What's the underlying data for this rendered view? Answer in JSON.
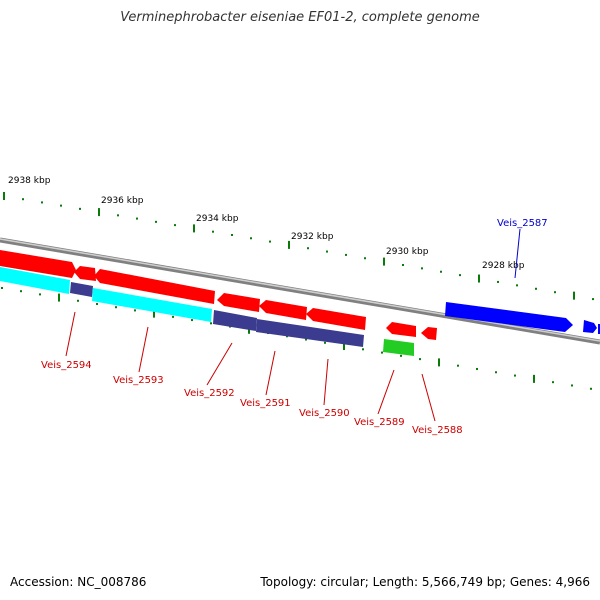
{
  "title": "Verminephrobacter eiseniae EF01-2, complete genome",
  "footer": {
    "accession": "Accession: NC_008786",
    "summary": "Topology: circular; Length: 5,566,749 bp; Genes: 4,966"
  },
  "kbp_labels": [
    "2938 kbp",
    "2936 kbp",
    "2934 kbp",
    "2932 kbp",
    "2930 kbp",
    "2928 kbp"
  ],
  "colors": {
    "red": "#ff0000",
    "cyan": "#00ffff",
    "navy": "#3b3b8f",
    "blue": "#0000ff",
    "green": "#22cc22",
    "tick": "#0a7a0a",
    "backbone": "#808080"
  },
  "genes": [
    {
      "label": "Veis_2594",
      "color": "#cc0000"
    },
    {
      "label": "Veis_2593",
      "color": "#cc0000"
    },
    {
      "label": "Veis_2592",
      "color": "#cc0000"
    },
    {
      "label": "Veis_2591",
      "color": "#cc0000"
    },
    {
      "label": "Veis_2590",
      "color": "#cc0000"
    },
    {
      "label": "Veis_2589",
      "color": "#cc0000"
    },
    {
      "label": "Veis_2588",
      "color": "#cc0000"
    },
    {
      "label": "Veis_2587",
      "color": "#0000cc"
    }
  ]
}
